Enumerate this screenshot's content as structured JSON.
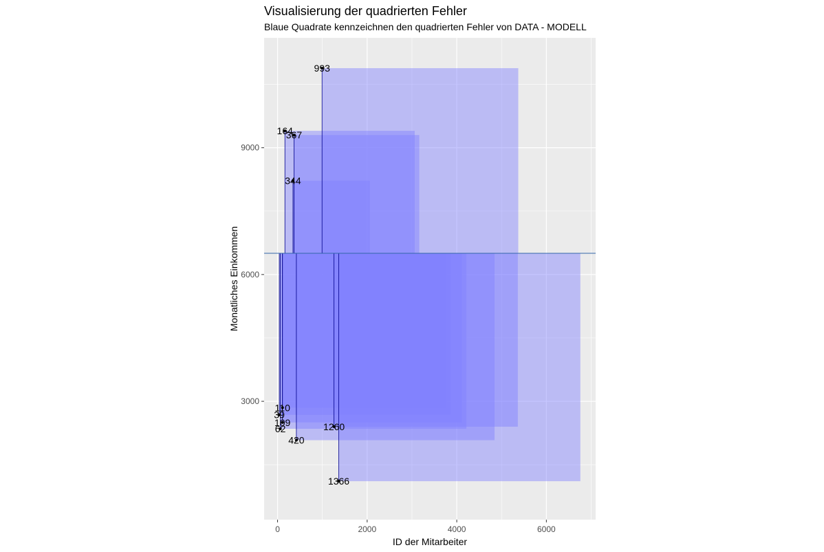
{
  "chart_data": {
    "type": "scatter",
    "title": "Visualisierung der quadrierten Fehler",
    "subtitle": "Blaue Quadrate kennzeichnen den quadrierten Fehler von DATA - MODELL",
    "xlabel": "ID der Mitarbeiter",
    "ylabel": "Monatliches Einkommen",
    "xlim": [
      -300,
      7100
    ],
    "ylim": [
      200,
      11600
    ],
    "x_ticks": [
      0,
      2000,
      4000,
      6000
    ],
    "x_tick_labels": [
      "0",
      "2000",
      "4000",
      "6000"
    ],
    "y_ticks": [
      3000,
      6000,
      9000
    ],
    "y_tick_labels": [
      "3000",
      "6000",
      "9000"
    ],
    "x_minor_ticks": [
      1000,
      3000,
      5000,
      7000
    ],
    "y_minor_ticks": [
      1500,
      4500,
      7500,
      10500
    ],
    "grid": true,
    "model_line": 6503,
    "colors": {
      "panel": "#ebebeb",
      "grid": "#ffffff",
      "square_fill": "#8080ff",
      "square_opacity": 0.45,
      "residual": "#00008b",
      "model_line": "#3366aa",
      "point": "#000000"
    },
    "points": [
      {
        "id": 993,
        "label": "993",
        "x": 993,
        "y": 10883
      },
      {
        "id": 164,
        "label": "164",
        "x": 164,
        "y": 9400
      },
      {
        "id": 367,
        "label": "367",
        "x": 367,
        "y": 9300
      },
      {
        "id": 344,
        "label": "344",
        "x": 344,
        "y": 8220
      },
      {
        "id": 110,
        "label": "110",
        "x": 110,
        "y": 2850
      },
      {
        "id": 39,
        "label": "39",
        "x": 39,
        "y": 2680
      },
      {
        "id": 109,
        "label": "109",
        "x": 109,
        "y": 2500
      },
      {
        "id": 62,
        "label": "62",
        "x": 62,
        "y": 2350
      },
      {
        "id": 420,
        "label": "420",
        "x": 420,
        "y": 2080
      },
      {
        "id": 1260,
        "label": "1260",
        "x": 1260,
        "y": 2400
      },
      {
        "id": 1366,
        "label": "1366",
        "x": 1366,
        "y": 1110
      }
    ]
  }
}
